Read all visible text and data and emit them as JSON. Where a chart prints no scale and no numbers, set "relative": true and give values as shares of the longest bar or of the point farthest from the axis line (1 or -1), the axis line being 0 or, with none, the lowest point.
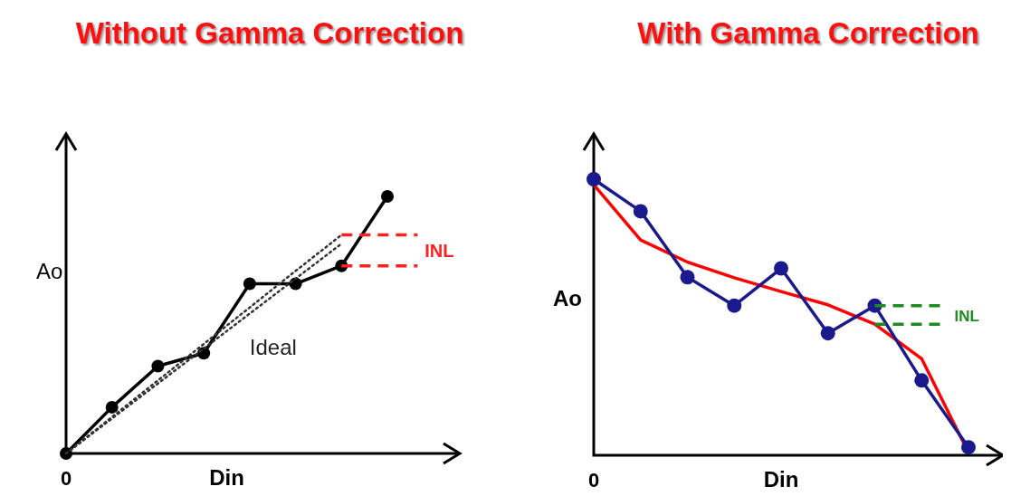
{
  "chart_data": [
    {
      "type": "line",
      "title": "Without Gamma Correction",
      "xlabel": "Din",
      "ylabel": "Ao",
      "relative": true,
      "annotations": [
        "0",
        "INL"
      ],
      "categories": [
        null,
        null,
        null,
        null,
        null,
        null,
        null,
        null
      ],
      "series": [
        {
          "color": "#000000",
          "marker": "circle",
          "values": [
            0,
            0.18,
            0.34,
            0.39,
            0.66,
            0.66,
            0.73,
            1
          ]
        },
        {
          "name": "Ideal",
          "color": "#333333",
          "marker": "none",
          "line_style": "dotted",
          "values": [
            0,
            0.142,
            0.284,
            0.426,
            0.568,
            0.71,
            0.85,
            null
          ]
        },
        {
          "color": "#333333",
          "marker": "none",
          "line_style": "dotted",
          "values": [
            0,
            0.136,
            0.272,
            0.408,
            0.544,
            0.68,
            0.816,
            null
          ]
        }
      ]
    },
    {
      "type": "line",
      "title": "With Gamma Correction",
      "xlabel": "Din",
      "ylabel": "Ao",
      "relative": true,
      "annotations": [
        "0",
        "INL"
      ],
      "categories": [
        null,
        null,
        null,
        null,
        null,
        null,
        null,
        null,
        null
      ],
      "series": [
        {
          "color": "#ff0000",
          "marker": "none",
          "values": [
            0.98,
            0.78,
            0.7,
            0.643,
            0.593,
            0.545,
            0.475,
            0.35,
            0.01
          ]
        },
        {
          "color": "#1a1a8c",
          "marker": "circle",
          "values": [
            1,
            0.884,
            0.645,
            0.542,
            0.677,
            0.442,
            0.542,
            0.271,
            0.029
          ]
        }
      ]
    }
  ]
}
